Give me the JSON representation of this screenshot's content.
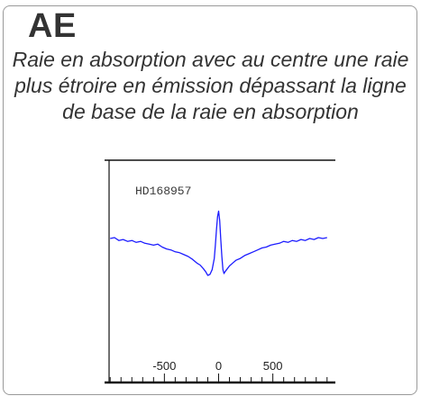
{
  "card": {
    "code": "AE",
    "description": "Raie en absorption avec au centre une raie plus étroire en émission dépassant la ligne de base de la raie en absorption"
  },
  "chart_data": {
    "type": "line",
    "title": "HD168957",
    "xlabel": "",
    "ylabel": "",
    "xlim": [
      -1010,
      1010
    ],
    "x_ticks": [
      -500,
      0,
      500
    ],
    "x_tick_labels": [
      "-500",
      "0",
      "500"
    ],
    "grid": false,
    "series": [
      {
        "color": "#1c1cff",
        "x": [
          -1000,
          -960,
          -920,
          -880,
          -840,
          -800,
          -760,
          -720,
          -680,
          -640,
          -600,
          -560,
          -520,
          -480,
          -440,
          -400,
          -360,
          -320,
          -280,
          -240,
          -200,
          -170,
          -140,
          -120,
          -100,
          -80,
          -60,
          -40,
          -30,
          -20,
          -10,
          0,
          10,
          20,
          30,
          40,
          50,
          60,
          80,
          100,
          130,
          160,
          200,
          240,
          280,
          320,
          360,
          400,
          440,
          480,
          520,
          560,
          600,
          640,
          680,
          720,
          760,
          800,
          840,
          880,
          920,
          960,
          1000
        ],
        "values": [
          0.99,
          1.0,
          0.97,
          0.98,
          0.96,
          0.97,
          0.95,
          0.96,
          0.94,
          0.93,
          0.92,
          0.93,
          0.9,
          0.88,
          0.87,
          0.85,
          0.84,
          0.82,
          0.8,
          0.77,
          0.73,
          0.71,
          0.67,
          0.64,
          0.6,
          0.61,
          0.66,
          0.78,
          0.92,
          1.08,
          1.22,
          1.28,
          1.18,
          0.98,
          0.8,
          0.66,
          0.62,
          0.64,
          0.67,
          0.7,
          0.73,
          0.76,
          0.78,
          0.81,
          0.83,
          0.85,
          0.87,
          0.89,
          0.9,
          0.92,
          0.93,
          0.94,
          0.96,
          0.95,
          0.97,
          0.96,
          0.98,
          0.97,
          0.99,
          0.98,
          1.0,
          0.99,
          1.0
        ]
      }
    ]
  }
}
